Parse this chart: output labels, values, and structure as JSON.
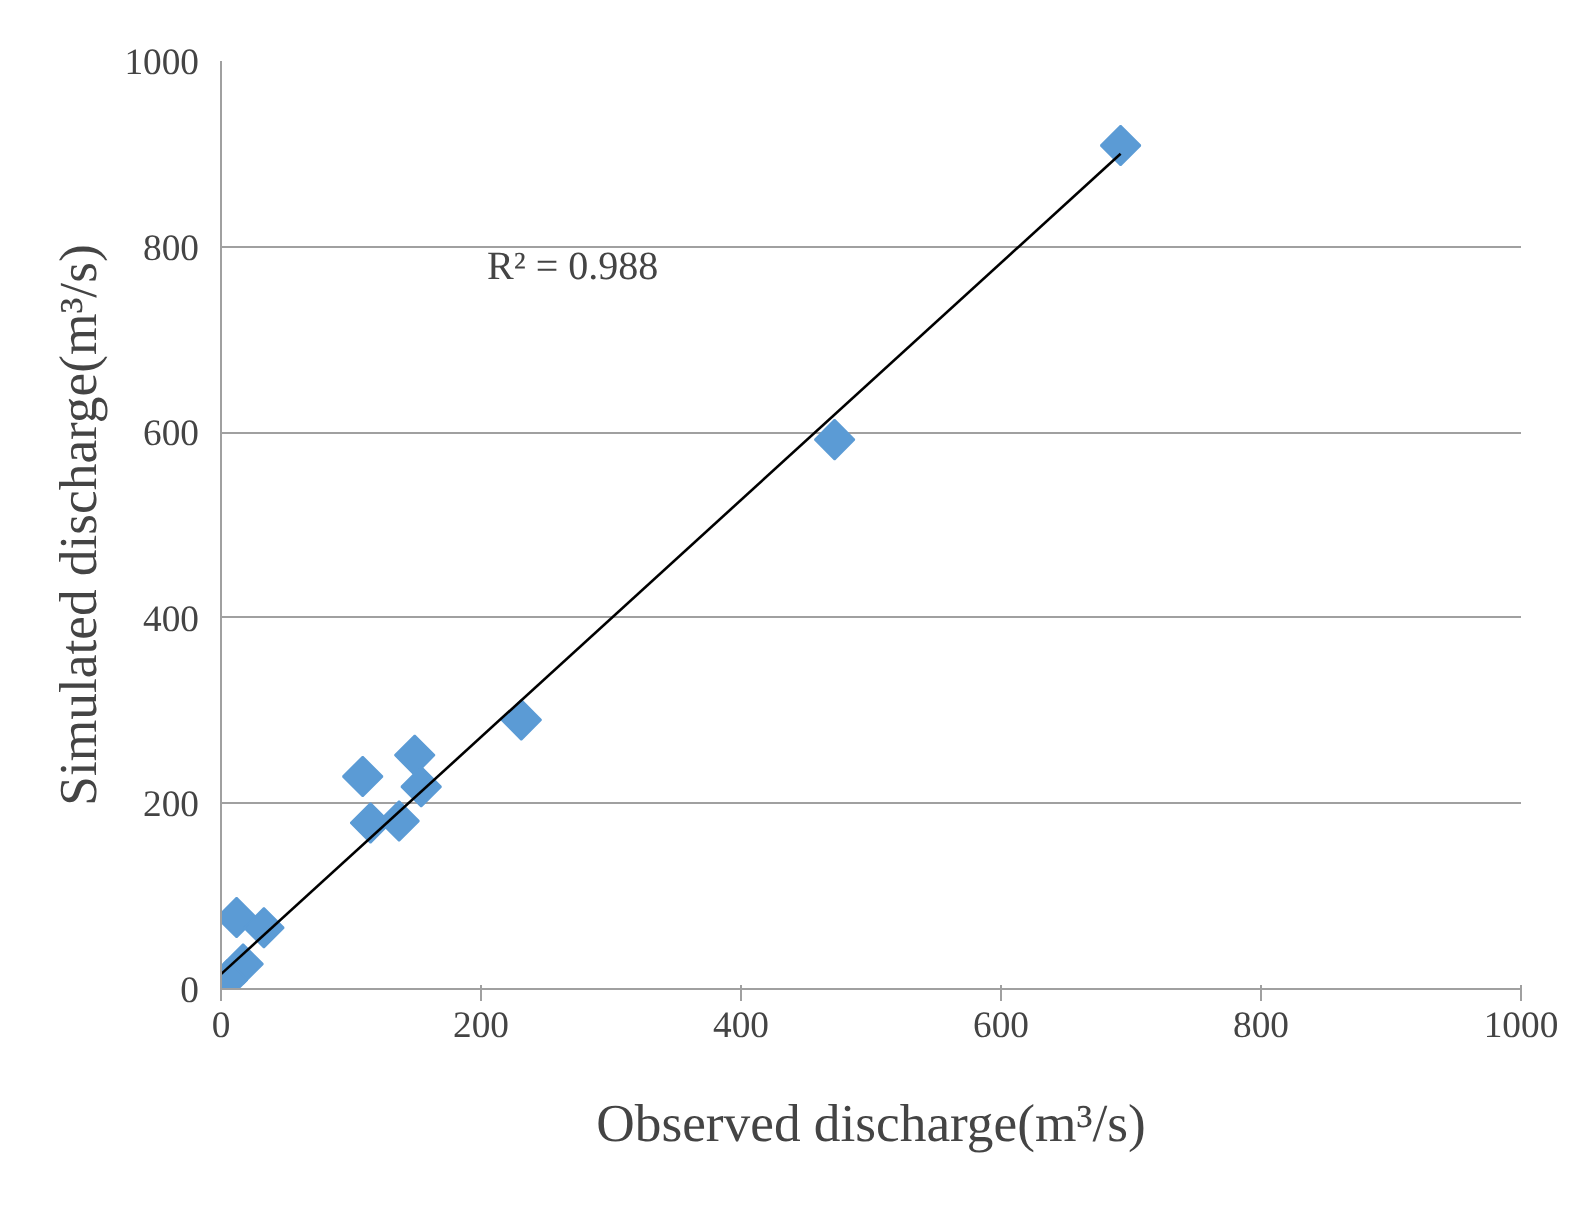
{
  "chart_data": {
    "type": "scatter",
    "xlabel": "Observed discharge(m³/s)",
    "ylabel": "Simulated discharge(m³/s)",
    "xlim": [
      0,
      1000
    ],
    "ylim": [
      0,
      1000
    ],
    "xticks": [
      0,
      200,
      400,
      600,
      800,
      1000
    ],
    "yticks": [
      0,
      200,
      400,
      600,
      800,
      1000
    ],
    "grid": "y",
    "series": [
      {
        "color": "#5b9bd5",
        "marker": "diamond",
        "x": [
          692,
          472,
          231,
          109,
          149,
          154,
          137,
          115,
          12,
          33,
          17,
          5
        ],
        "values": [
          909,
          592,
          290,
          229,
          252,
          218,
          181,
          179,
          77,
          66,
          27,
          10
        ]
      },
      {
        "type": "line",
        "color": "#000000",
        "x": [
          0,
          692
        ],
        "values": [
          16,
          900
        ]
      }
    ],
    "annotations": [
      "R² = 0.988"
    ]
  }
}
